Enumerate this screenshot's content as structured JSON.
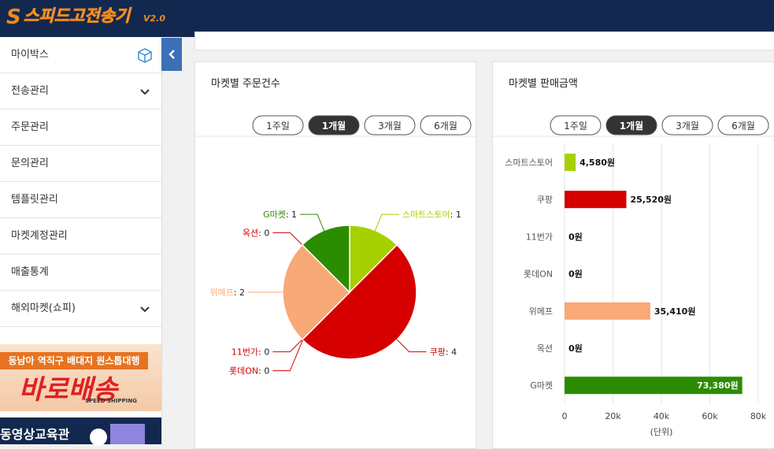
{
  "header": {
    "logo_mark": "S",
    "logo_text": "스피드고전송기",
    "version": "V2.0"
  },
  "sidebar": {
    "menu": [
      {
        "label": "마이박스",
        "icon": "box"
      },
      {
        "label": "전송관리",
        "icon": "chevron"
      },
      {
        "label": "주문관리"
      },
      {
        "label": "문의관리"
      },
      {
        "label": "템플릿관리"
      },
      {
        "label": "마켓계정관리"
      },
      {
        "label": "매출통계"
      },
      {
        "label": "해외마켓(쇼피)",
        "icon": "chevron"
      }
    ],
    "banner": {
      "tagline": "동남아 역직구 배대지 원스톱대행",
      "title": "바로배송",
      "subtitle": "SPEED SHIPPING"
    },
    "video_banner": "동영상교육관"
  },
  "chart_data": [
    {
      "type": "pie",
      "title": "마켓별 주문건수",
      "periods": [
        "1주일",
        "1개월",
        "3개월",
        "6개월"
      ],
      "active_period": 1,
      "categories": [
        "스마트스토어",
        "쿠팡",
        "11번가",
        "롯데ON",
        "위메프",
        "옥션",
        "G마켓"
      ],
      "values": [
        1,
        4,
        0,
        0,
        2,
        0,
        1
      ],
      "value_labels": [
        ": 1",
        ": 4",
        ": 0",
        ": 0",
        ": 2",
        ": 0",
        ": 1"
      ],
      "colors": [
        "#a6d000",
        "#d60000",
        "#d60000",
        "#d60000",
        "#f9a877",
        "#d60000",
        "#2c8c00"
      ]
    },
    {
      "type": "hbar",
      "title": "마켓별 판매금액",
      "periods": [
        "1주일",
        "1개월",
        "3개월",
        "6개월"
      ],
      "active_period": 1,
      "categories": [
        "스마트스토어",
        "쿠팡",
        "11번가",
        "롯데ON",
        "위메프",
        "옥션",
        "G마켓"
      ],
      "values": [
        4580,
        25520,
        0,
        0,
        35410,
        0,
        73380
      ],
      "value_labels": [
        "4,580원",
        "25,520원",
        "0원",
        "0원",
        "35,410원",
        "0원",
        "73,380원"
      ],
      "colors": [
        "#a6d000",
        "#d60000",
        "#d60000",
        "#d60000",
        "#f9a877",
        "#d60000",
        "#2c8c00"
      ],
      "xlim": [
        0,
        80000
      ],
      "xticks": [
        0,
        {
          "value": 20000,
          "label": "20k"
        },
        {
          "value": 40000,
          "label": "40k"
        },
        {
          "value": 60000,
          "label": "60k"
        },
        {
          "value": 80000,
          "label": "80k"
        }
      ],
      "xlabel": "(단위)",
      "grid": true
    }
  ]
}
